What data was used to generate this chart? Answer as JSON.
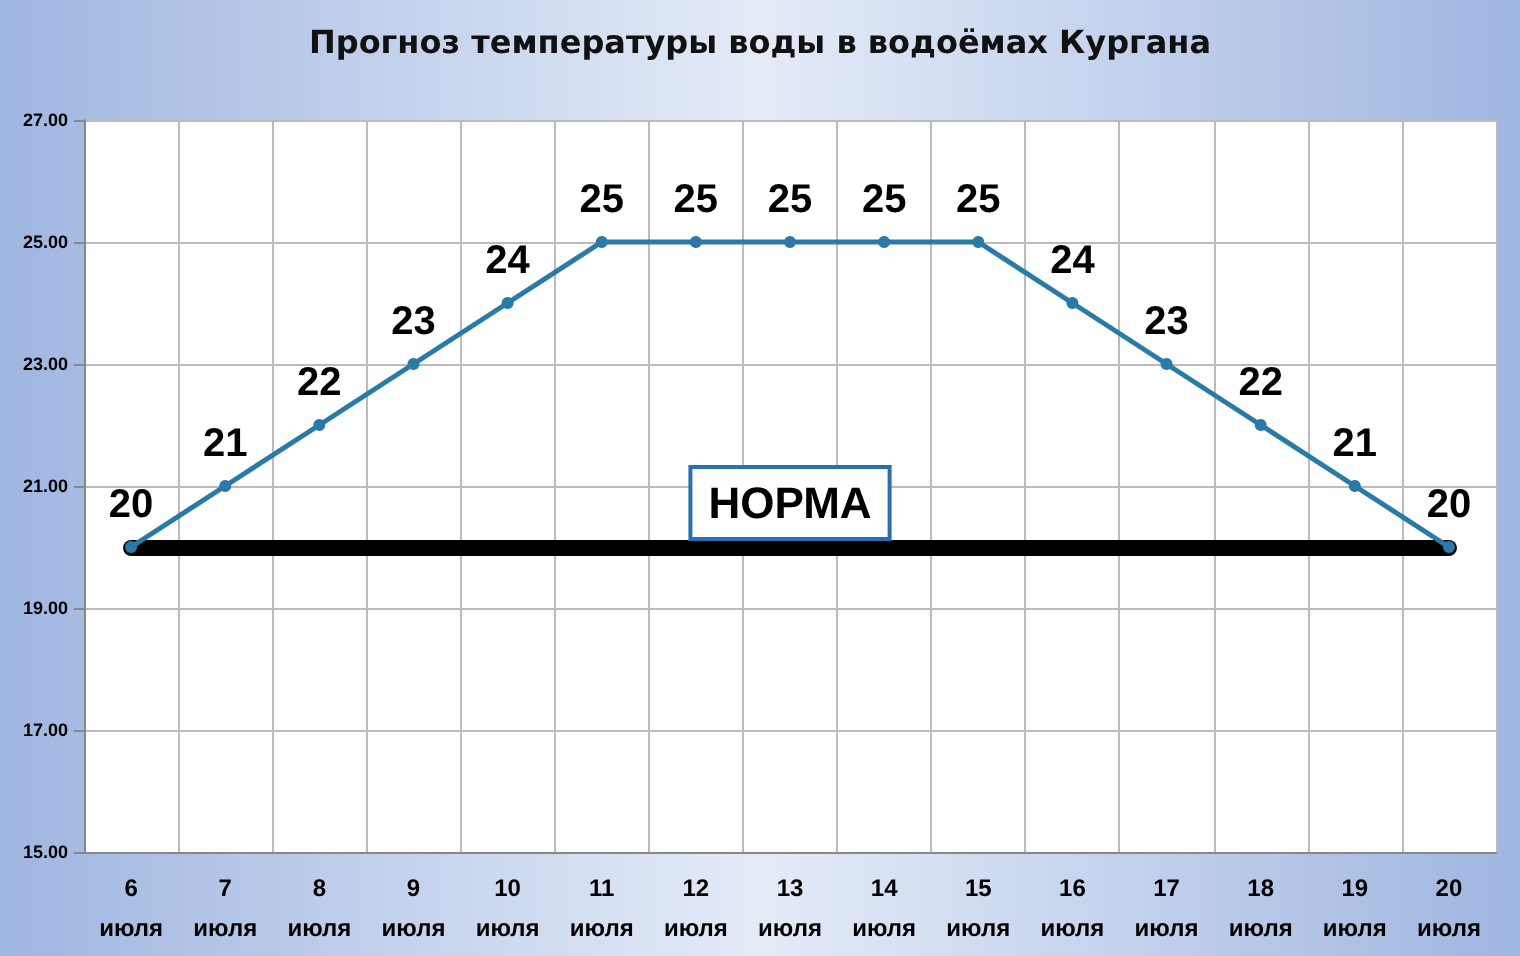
{
  "chart_data": {
    "type": "line",
    "title": "Прогноз температуры воды в водоёмах Кургана",
    "categories": [
      "6\nиюля",
      "7\nиюля",
      "8\nиюля",
      "9\nиюля",
      "10\nиюля",
      "11\nиюля",
      "12\nиюля",
      "13\nиюля",
      "14\nиюля",
      "15\nиюля",
      "16\nиюля",
      "17\nиюля",
      "18\nиюля",
      "19\nиюля",
      "20\nиюля"
    ],
    "series": [
      {
        "color": "#2a7aa8",
        "values": [
          20,
          21,
          22,
          23,
          24,
          25,
          25,
          25,
          25,
          25,
          24,
          23,
          22,
          21,
          20
        ]
      }
    ],
    "ylim": [
      15,
      27
    ],
    "yticks": [
      {
        "value": 15,
        "label": "15.00"
      },
      {
        "value": 17,
        "label": "17.00"
      },
      {
        "value": 19,
        "label": "19.00"
      },
      {
        "value": 21,
        "label": "21.00"
      },
      {
        "value": 23,
        "label": "23.00"
      },
      {
        "value": 25,
        "label": "25.00"
      },
      {
        "value": 27,
        "label": "27.00"
      }
    ],
    "ref_lines": [
      {
        "axis": "y",
        "value": 20,
        "label": "НОРМА",
        "color": "#000000"
      }
    ],
    "data_labels": true,
    "grid": true,
    "marker": "circle",
    "line_style": "solid"
  }
}
